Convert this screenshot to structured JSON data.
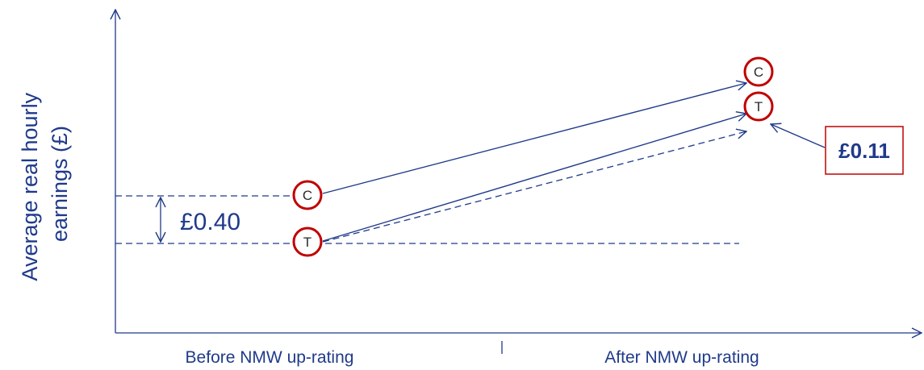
{
  "y_axis_label_line1": "Average real hourly",
  "y_axis_label_line2": "earnings (£)",
  "x_categories": [
    "Before NMW up-rating",
    "After NMW up-rating"
  ],
  "gap_before_label": "£0.40",
  "gap_after_label": "£0.11",
  "node_control": "C",
  "node_treatment": "T",
  "colors": {
    "axis": "#1f3a8a",
    "circle": "#c00000",
    "callout_border": "#c00000"
  }
}
